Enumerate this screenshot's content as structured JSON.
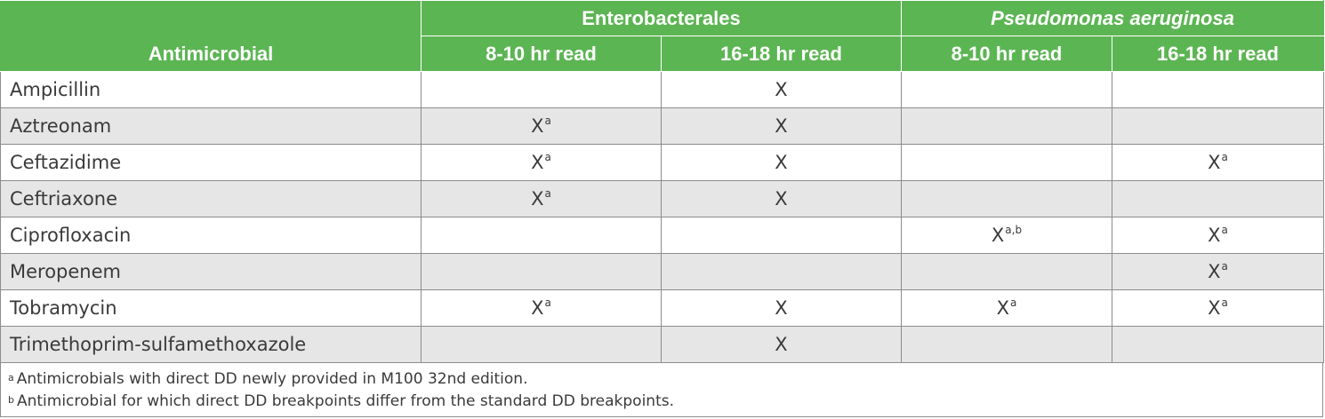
{
  "header": {
    "antimicrobial_label": "Antimicrobial",
    "groups": [
      {
        "label": "Enterobacterales",
        "italic": false
      },
      {
        "label": "Pseudomonas aeruginosa",
        "italic": true
      }
    ],
    "subheaders": [
      "8-10 hr read",
      "16-18 hr read",
      "8-10 hr read",
      "16-18 hr read"
    ]
  },
  "rows": [
    {
      "name": "Ampicillin",
      "cells": [
        {
          "mark": "",
          "sup": ""
        },
        {
          "mark": "X",
          "sup": ""
        },
        {
          "mark": "",
          "sup": ""
        },
        {
          "mark": "",
          "sup": ""
        }
      ]
    },
    {
      "name": "Aztreonam",
      "cells": [
        {
          "mark": "X",
          "sup": "a"
        },
        {
          "mark": "X",
          "sup": ""
        },
        {
          "mark": "",
          "sup": ""
        },
        {
          "mark": "",
          "sup": ""
        }
      ]
    },
    {
      "name": "Ceftazidime",
      "cells": [
        {
          "mark": "X",
          "sup": "a"
        },
        {
          "mark": "X",
          "sup": ""
        },
        {
          "mark": "",
          "sup": ""
        },
        {
          "mark": "X",
          "sup": "a"
        }
      ]
    },
    {
      "name": "Ceftriaxone",
      "cells": [
        {
          "mark": "X",
          "sup": "a"
        },
        {
          "mark": "X",
          "sup": ""
        },
        {
          "mark": "",
          "sup": ""
        },
        {
          "mark": "",
          "sup": ""
        }
      ]
    },
    {
      "name": "Ciprofloxacin",
      "cells": [
        {
          "mark": "",
          "sup": ""
        },
        {
          "mark": "",
          "sup": ""
        },
        {
          "mark": "X",
          "sup": "a,b"
        },
        {
          "mark": "X",
          "sup": "a"
        }
      ]
    },
    {
      "name": "Meropenem",
      "cells": [
        {
          "mark": "",
          "sup": ""
        },
        {
          "mark": "",
          "sup": ""
        },
        {
          "mark": "",
          "sup": ""
        },
        {
          "mark": "X",
          "sup": "a"
        }
      ]
    },
    {
      "name": "Tobramycin",
      "cells": [
        {
          "mark": "X",
          "sup": "a"
        },
        {
          "mark": "X",
          "sup": ""
        },
        {
          "mark": "X",
          "sup": "a"
        },
        {
          "mark": "X",
          "sup": "a"
        }
      ]
    },
    {
      "name": "Trimethoprim-sulfamethoxazole",
      "cells": [
        {
          "mark": "",
          "sup": ""
        },
        {
          "mark": "X",
          "sup": ""
        },
        {
          "mark": "",
          "sup": ""
        },
        {
          "mark": "",
          "sup": ""
        }
      ]
    }
  ],
  "footnotes": [
    {
      "marker": "a",
      "text": "Antimicrobials with direct DD newly provided in M100 32nd edition."
    },
    {
      "marker": "b",
      "text": "Antimicrobial for which direct DD breakpoints differ from the standard DD breakpoints."
    }
  ],
  "colors": {
    "header_bg": "#5cb553",
    "alt_row_bg": "#e6e6e6",
    "grid_line": "#8c8c8c"
  }
}
